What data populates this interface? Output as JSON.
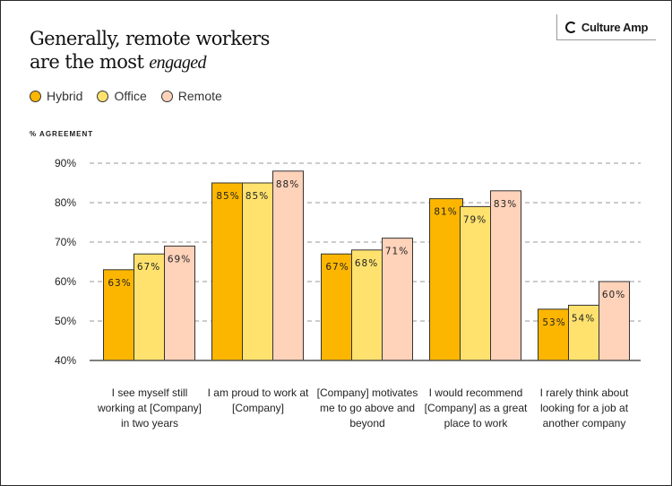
{
  "header": {
    "title_line1": "Generally, remote workers",
    "title_line2": "are the most ",
    "title_emphasis": "engaged",
    "logo_text": "Culture Amp"
  },
  "chart_data": {
    "type": "bar",
    "ylabel": "% AGREEMENT",
    "ylim": [
      40,
      90
    ],
    "yticks": [
      "90%",
      "80%",
      "70%",
      "60%",
      "50%",
      "40%"
    ],
    "ytick_values": [
      90,
      80,
      70,
      60,
      50,
      40
    ],
    "grid": true,
    "legend_placement": "top-left",
    "categories": [
      "I see myself still working at [Company] in two years",
      "I am proud to work at [Company]",
      "[Company] motivates me to go above and beyond",
      "I would recommend [Company] as a great place to work",
      "I rarely think about looking for a job at another company"
    ],
    "series": [
      {
        "name": "Hybrid",
        "color": "#FDB600",
        "values": [
          63,
          85,
          67,
          81,
          53
        ],
        "labels": [
          "63%",
          "85%",
          "67%",
          "81%",
          "53%"
        ]
      },
      {
        "name": "Office",
        "color": "#FFE26E",
        "values": [
          67,
          85,
          68,
          79,
          54
        ],
        "labels": [
          "67%",
          "85%",
          "68%",
          "79%",
          "54%"
        ]
      },
      {
        "name": "Remote",
        "color": "#FFD2BA",
        "values": [
          69,
          88,
          71,
          83,
          60
        ],
        "labels": [
          "69%",
          "88%",
          "71%",
          "83%",
          "60%"
        ]
      }
    ]
  }
}
